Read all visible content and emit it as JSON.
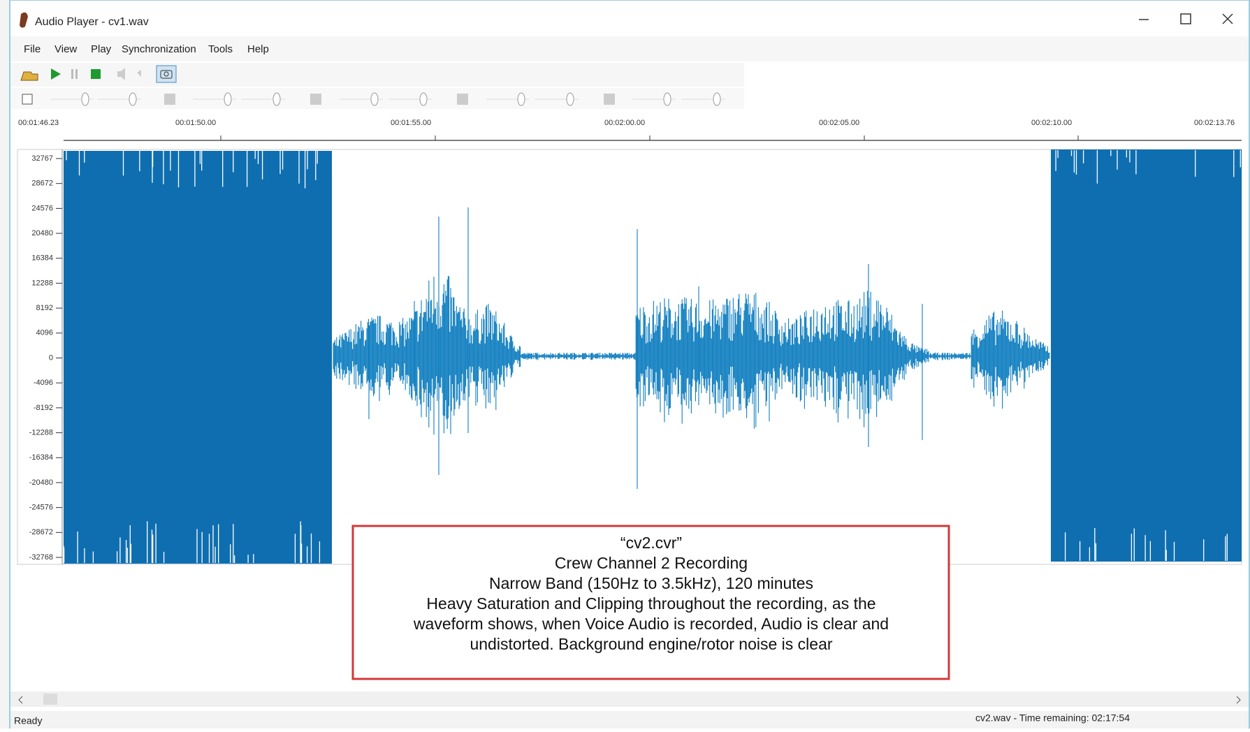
{
  "window": {
    "title": "Audio Player - cv1.wav"
  },
  "menu": [
    "File",
    "View",
    "Play",
    "Synchronization",
    "Tools",
    "Help"
  ],
  "time_ruler": [
    "00:01:46.23",
    "00:01:50.00",
    "00:01:55.00",
    "00:02:00.00",
    "00:02:05.00",
    "00:02:10.00",
    "00:02:13.76"
  ],
  "amplitude_labels": [
    "32767",
    "28672",
    "24576",
    "20480",
    "16384",
    "12288",
    "8192",
    "4096",
    "0",
    "-4096",
    "-8192",
    "-12288",
    "-16384",
    "-20480",
    "-24576",
    "-28672",
    "-32768"
  ],
  "annotation": [
    "“cv2.cvr”",
    "Crew Channel 2 Recording",
    "Narrow Band (150Hz to 3.5kHz), 120 minutes",
    "Heavy Saturation and Clipping throughout the recording, as the",
    "waveform shows, when Voice Audio is recorded, Audio is clear and",
    "undistorted. Background engine/rotor noise is clear"
  ],
  "status": {
    "left": "Ready",
    "right": "cv2.wav - Time remaining: 02:17:54"
  }
}
